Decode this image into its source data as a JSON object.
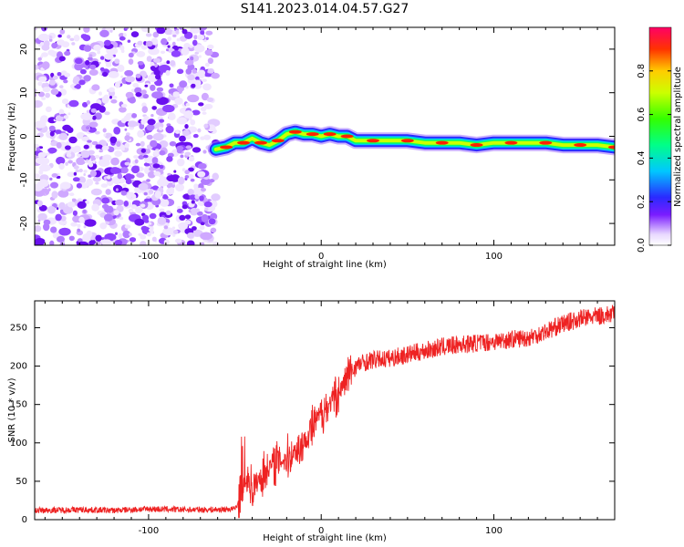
{
  "title": "S141.2023.014.04.57.G27",
  "chart_data": [
    {
      "type": "heatmap",
      "xlabel": "Height of straight line (km)",
      "ylabel": "Frequency (Hz)",
      "xlim": [
        -166,
        170
      ],
      "ylim": [
        -25,
        25
      ],
      "xticks": [
        -100,
        0,
        100
      ],
      "yticks": [
        -20,
        -10,
        0,
        10,
        20
      ],
      "colorbar": {
        "label": "Normalized spectral amplitude",
        "ticks": [
          "0.0",
          "0.2",
          "0.4",
          "0.6",
          "0.8"
        ],
        "range": [
          0,
          1
        ]
      },
      "noise_region_x": [
        -166,
        -61
      ],
      "ridge": {
        "x": [
          -61,
          -55,
          -50,
          -45,
          -40,
          -35,
          -30,
          -25,
          -20,
          -15,
          -10,
          -5,
          0,
          5,
          10,
          15,
          20,
          30,
          40,
          50,
          60,
          70,
          80,
          90,
          100,
          110,
          120,
          130,
          140,
          150,
          160,
          170
        ],
        "freq": [
          -3,
          -2.5,
          -1.5,
          -1.5,
          -0.5,
          -1.5,
          -2,
          -1,
          0.5,
          1,
          0.5,
          0.5,
          0,
          0.5,
          0,
          0,
          -1,
          -1,
          -1,
          -1,
          -1.5,
          -1.5,
          -1.5,
          -2,
          -1.5,
          -1.5,
          -1.5,
          -1.5,
          -2,
          -2,
          -2,
          -2.5
        ]
      }
    },
    {
      "type": "line",
      "xlabel": "Height of straight line (km)",
      "ylabel": "SNR (10 * v/v)",
      "xlim": [
        -166,
        170
      ],
      "ylim": [
        0,
        285
      ],
      "xticks": [
        -100,
        0,
        100
      ],
      "yticks": [
        0,
        50,
        100,
        150,
        200,
        250
      ],
      "color": "#ee2222",
      "series": [
        {
          "x": [
            -166,
            -140,
            -120,
            -100,
            -80,
            -60,
            -50,
            -46,
            -44,
            -42,
            -40,
            -35,
            -30,
            -25,
            -20,
            -15,
            -10,
            -5,
            0,
            5,
            10,
            15,
            20,
            25,
            30,
            40,
            50,
            60,
            70,
            80,
            90,
            100,
            110,
            120,
            130,
            140,
            150,
            160,
            170
          ],
          "y": [
            12,
            13,
            12,
            14,
            13,
            13,
            14,
            30,
            45,
            55,
            40,
            55,
            70,
            75,
            80,
            90,
            100,
            120,
            140,
            150,
            165,
            185,
            200,
            205,
            208,
            210,
            215,
            220,
            225,
            228,
            230,
            232,
            235,
            237,
            245,
            255,
            262,
            265,
            268
          ]
        }
      ]
    }
  ]
}
